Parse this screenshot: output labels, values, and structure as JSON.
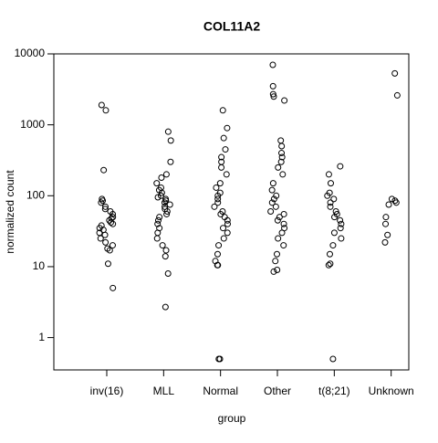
{
  "chart_data": {
    "type": "strip",
    "title": "COL11A2",
    "xlabel": "group",
    "ylabel": "normalized count",
    "categories": [
      "inv(16)",
      "MLL",
      "Normal",
      "Other",
      "t(8;21)",
      "Unknown"
    ],
    "values": [
      [
        1600,
        1900,
        230,
        85,
        90,
        80,
        70,
        65,
        60,
        55,
        50,
        48,
        45,
        42,
        40,
        38,
        35,
        33,
        30,
        28,
        25,
        22,
        20,
        18,
        17,
        11,
        5
      ],
      [
        800,
        600,
        300,
        200,
        180,
        150,
        130,
        120,
        110,
        100,
        95,
        90,
        85,
        80,
        75,
        70,
        65,
        60,
        55,
        50,
        45,
        40,
        35,
        30,
        25,
        20,
        17,
        14,
        8,
        2.7
      ],
      [
        1600,
        900,
        650,
        450,
        350,
        300,
        250,
        200,
        150,
        130,
        110,
        100,
        90,
        80,
        70,
        60,
        55,
        50,
        45,
        40,
        35,
        30,
        25,
        20,
        15,
        12,
        10.5,
        10.5,
        0.5,
        0.5
      ],
      [
        7000,
        3500,
        2700,
        2500,
        2200,
        600,
        500,
        400,
        350,
        300,
        250,
        200,
        150,
        120,
        100,
        90,
        80,
        70,
        60,
        55,
        50,
        45,
        40,
        35,
        30,
        25,
        20,
        15,
        12,
        9,
        8.5
      ],
      [
        260,
        200,
        150,
        110,
        100,
        90,
        80,
        70,
        60,
        55,
        50,
        45,
        40,
        35,
        30,
        25,
        20,
        15,
        11,
        10.5,
        0.5
      ],
      [
        5300,
        2600,
        90,
        85,
        80,
        75,
        50,
        40,
        28,
        22
      ]
    ],
    "color": "#000000",
    "ylog": true,
    "ylim": [
      0.35,
      10000
    ],
    "yticks": [
      1,
      10,
      100,
      1000,
      10000
    ]
  }
}
